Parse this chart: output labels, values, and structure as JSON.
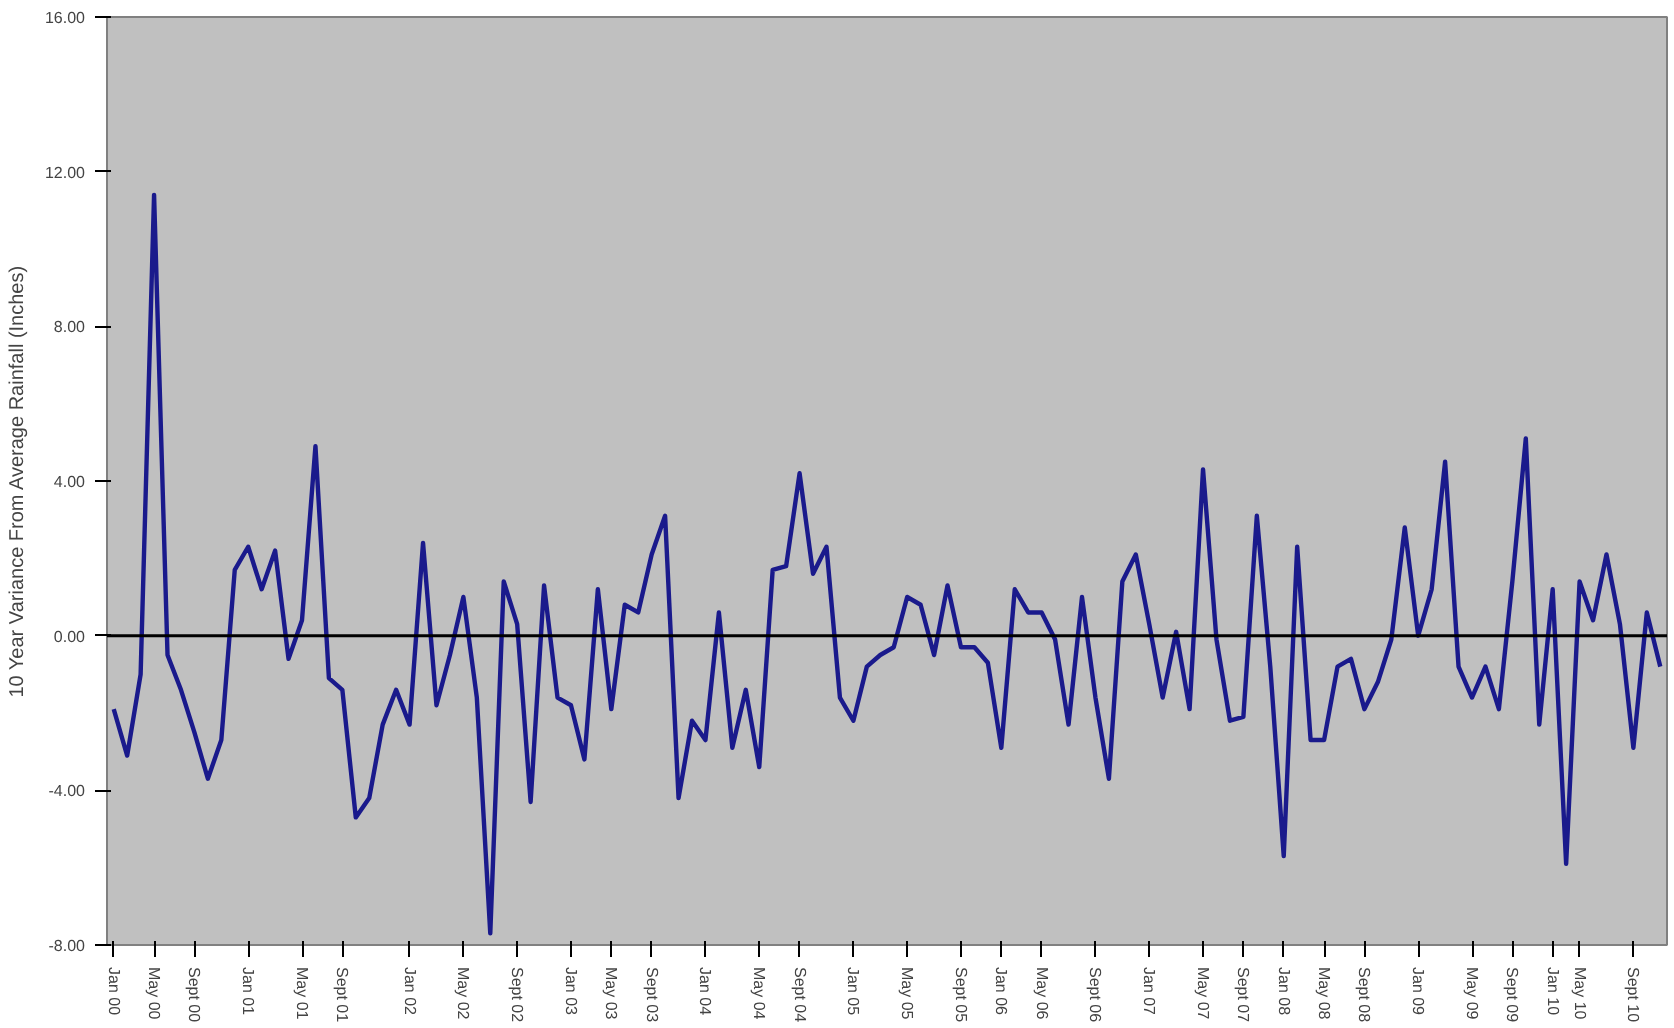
{
  "chart_data": {
    "type": "line",
    "ylabel": "10 Year Variance From Average Rainfall (Inches)",
    "categories": [
      "Jan 00",
      null,
      null,
      "May 00",
      null,
      null,
      "Sept 00",
      null,
      null,
      null,
      "Jan 01",
      null,
      null,
      null,
      "May 01",
      null,
      null,
      "Sept 01",
      null,
      null,
      null,
      null,
      "Jan 02",
      null,
      null,
      null,
      "May 02",
      null,
      null,
      null,
      "Sept 02",
      null,
      null,
      null,
      "Jan 03",
      null,
      null,
      "May 03",
      null,
      null,
      "Sept 03",
      null,
      null,
      null,
      "Jan 04",
      null,
      null,
      null,
      "May 04",
      null,
      null,
      "Sept 04",
      null,
      null,
      null,
      "Jan 05",
      null,
      null,
      null,
      "May 05",
      null,
      null,
      null,
      "Sept 05",
      null,
      null,
      "Jan 06",
      null,
      null,
      "May 06",
      null,
      null,
      null,
      "Sept 06",
      null,
      null,
      null,
      "Jan 07",
      null,
      null,
      null,
      "May 07",
      null,
      null,
      "Sept 07",
      null,
      null,
      "Jan 08",
      null,
      null,
      "May 08",
      null,
      null,
      "Sept 08",
      null,
      null,
      null,
      "Jan 09",
      null,
      null,
      null,
      "May 09",
      null,
      null,
      "Sept 09",
      null,
      null,
      "Jan 10",
      null,
      "May 10",
      null,
      null,
      null,
      "Sept 10",
      null,
      null
    ],
    "series": [
      {
        "color": "#1a1a8c",
        "values": [
          -1.9,
          -3.1,
          -1.0,
          11.4,
          -0.5,
          -1.4,
          -2.5,
          -3.7,
          -2.7,
          1.7,
          2.3,
          1.2,
          2.2,
          -0.6,
          0.4,
          4.9,
          -1.1,
          -1.4,
          -4.7,
          -4.2,
          -2.3,
          -1.4,
          -2.3,
          2.4,
          -1.8,
          -0.5,
          1.0,
          -1.6,
          -7.7,
          1.4,
          0.3,
          -4.3,
          1.3,
          -1.6,
          -1.8,
          -3.2,
          1.2,
          -1.9,
          0.8,
          0.6,
          2.1,
          3.1,
          -4.2,
          -2.2,
          -2.7,
          0.6,
          -2.9,
          -1.4,
          -3.4,
          1.7,
          1.8,
          4.2,
          1.6,
          2.3,
          -1.6,
          -2.2,
          -0.8,
          -0.5,
          -0.3,
          1.0,
          0.8,
          -0.5,
          1.3,
          -0.3,
          -0.3,
          -0.7,
          -2.9,
          1.2,
          0.6,
          0.6,
          -0.1,
          -2.3,
          1.0,
          -1.6,
          -3.7,
          1.4,
          2.1,
          0.3,
          -1.6,
          0.1,
          -1.9,
          4.3,
          -0.1,
          -2.2,
          -2.1,
          3.1,
          -0.8,
          -5.7,
          2.3,
          -2.7,
          -2.7,
          -0.8,
          -0.6,
          -1.9,
          -1.2,
          -0.1,
          2.8,
          0.0,
          1.2,
          4.5,
          -0.8,
          -1.6,
          -0.8,
          -1.9,
          1.4,
          5.1,
          -2.3,
          1.2,
          -5.9,
          1.4,
          0.4,
          2.1,
          0.3,
          -2.9,
          0.6,
          -0.8
        ]
      }
    ],
    "ylim": [
      -8,
      16
    ],
    "yticks": [
      {
        "value": -8,
        "label": "-8.00"
      },
      {
        "value": -4,
        "label": "-4.00"
      },
      {
        "value": 0,
        "label": "0.00"
      },
      {
        "value": 4,
        "label": "4.00"
      },
      {
        "value": 8,
        "label": "8.00"
      },
      {
        "value": 12,
        "label": "12.00"
      },
      {
        "value": 16,
        "label": "16.00"
      }
    ],
    "ref_lines": [
      {
        "axis": "y",
        "value": 0,
        "color": "#000000"
      }
    ],
    "line_style": "solid",
    "grid": false
  }
}
